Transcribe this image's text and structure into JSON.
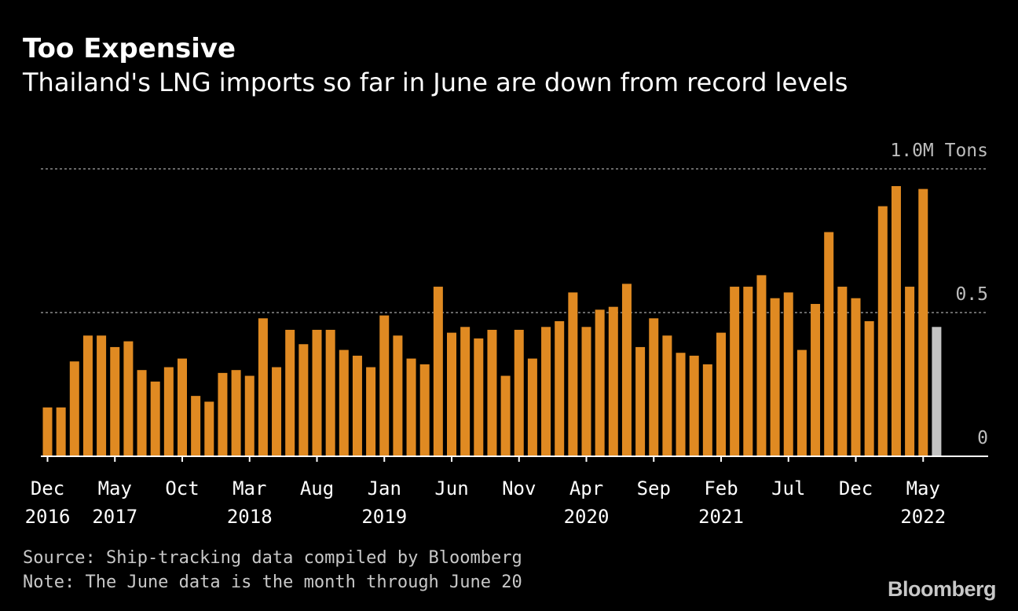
{
  "header": {
    "title": "Too Expensive",
    "subtitle": "Thailand's LNG imports so far in June are down from record levels"
  },
  "footer": {
    "source": "Source: Ship-tracking data compiled by Bloomberg",
    "note": "Note: The June data is the month through June 20",
    "brand": "Bloomberg"
  },
  "colors": {
    "bar": "#e08a22",
    "partial_bar": "#c3c3c3",
    "background": "#000000",
    "gridline": "#8a8a8a",
    "axis": "#ffffff",
    "tick_text": "#ffffff",
    "value_label": "#bdbdbd"
  },
  "chart_data": {
    "type": "bar",
    "title": "Too Expensive",
    "subtitle": "Thailand's LNG imports so far in June are down from record levels",
    "unit": "M Tons",
    "ylim": [
      0,
      1.0
    ],
    "grid": true,
    "y_ticks": [
      {
        "value": 1.0,
        "label": "1.0M Tons"
      },
      {
        "value": 0.5,
        "label": "0.5"
      },
      {
        "value": 0,
        "label": "0"
      }
    ],
    "x_tick_labels": [
      {
        "index": 0,
        "month": "Dec",
        "year": "2016"
      },
      {
        "index": 5,
        "month": "May",
        "year": "2017"
      },
      {
        "index": 10,
        "month": "Oct",
        "year": ""
      },
      {
        "index": 15,
        "month": "Mar",
        "year": "2018"
      },
      {
        "index": 20,
        "month": "Aug",
        "year": ""
      },
      {
        "index": 25,
        "month": "Jan",
        "year": "2019"
      },
      {
        "index": 30,
        "month": "Jun",
        "year": ""
      },
      {
        "index": 35,
        "month": "Nov",
        "year": ""
      },
      {
        "index": 40,
        "month": "Apr",
        "year": "2020"
      },
      {
        "index": 45,
        "month": "Sep",
        "year": ""
      },
      {
        "index": 50,
        "month": "Feb",
        "year": "2021"
      },
      {
        "index": 55,
        "month": "Jul",
        "year": ""
      },
      {
        "index": 60,
        "month": "Dec",
        "year": ""
      },
      {
        "index": 65,
        "month": "May",
        "year": "2022"
      }
    ],
    "categories": [
      "2016-12",
      "2017-01",
      "2017-02",
      "2017-03",
      "2017-04",
      "2017-05",
      "2017-06",
      "2017-07",
      "2017-08",
      "2017-09",
      "2017-10",
      "2017-11",
      "2017-12",
      "2018-01",
      "2018-02",
      "2018-03",
      "2018-04",
      "2018-05",
      "2018-06",
      "2018-07",
      "2018-08",
      "2018-09",
      "2018-10",
      "2018-11",
      "2018-12",
      "2019-01",
      "2019-02",
      "2019-03",
      "2019-04",
      "2019-05",
      "2019-06",
      "2019-07",
      "2019-08",
      "2019-09",
      "2019-10",
      "2019-11",
      "2019-12",
      "2020-01",
      "2020-02",
      "2020-03",
      "2020-04",
      "2020-05",
      "2020-06",
      "2020-07",
      "2020-08",
      "2020-09",
      "2020-10",
      "2020-11",
      "2020-12",
      "2021-01",
      "2021-02",
      "2021-03",
      "2021-04",
      "2021-05",
      "2021-06",
      "2021-07",
      "2021-08",
      "2021-09",
      "2021-10",
      "2021-11",
      "2021-12",
      "2022-01",
      "2022-02",
      "2022-03",
      "2022-04",
      "2022-05",
      "2022-06"
    ],
    "values": [
      0.17,
      0.17,
      0.33,
      0.42,
      0.42,
      0.38,
      0.4,
      0.3,
      0.26,
      0.31,
      0.34,
      0.21,
      0.19,
      0.29,
      0.3,
      0.28,
      0.48,
      0.31,
      0.44,
      0.39,
      0.44,
      0.44,
      0.37,
      0.35,
      0.31,
      0.49,
      0.42,
      0.34,
      0.32,
      0.59,
      0.43,
      0.45,
      0.41,
      0.44,
      0.28,
      0.44,
      0.34,
      0.45,
      0.47,
      0.57,
      0.45,
      0.51,
      0.52,
      0.6,
      0.38,
      0.48,
      0.42,
      0.36,
      0.35,
      0.32,
      0.43,
      0.59,
      0.59,
      0.63,
      0.55,
      0.57,
      0.37,
      0.53,
      0.78,
      0.59,
      0.55,
      0.47,
      0.87,
      0.94,
      0.59,
      0.93,
      0.45
    ],
    "partial_last": true
  }
}
